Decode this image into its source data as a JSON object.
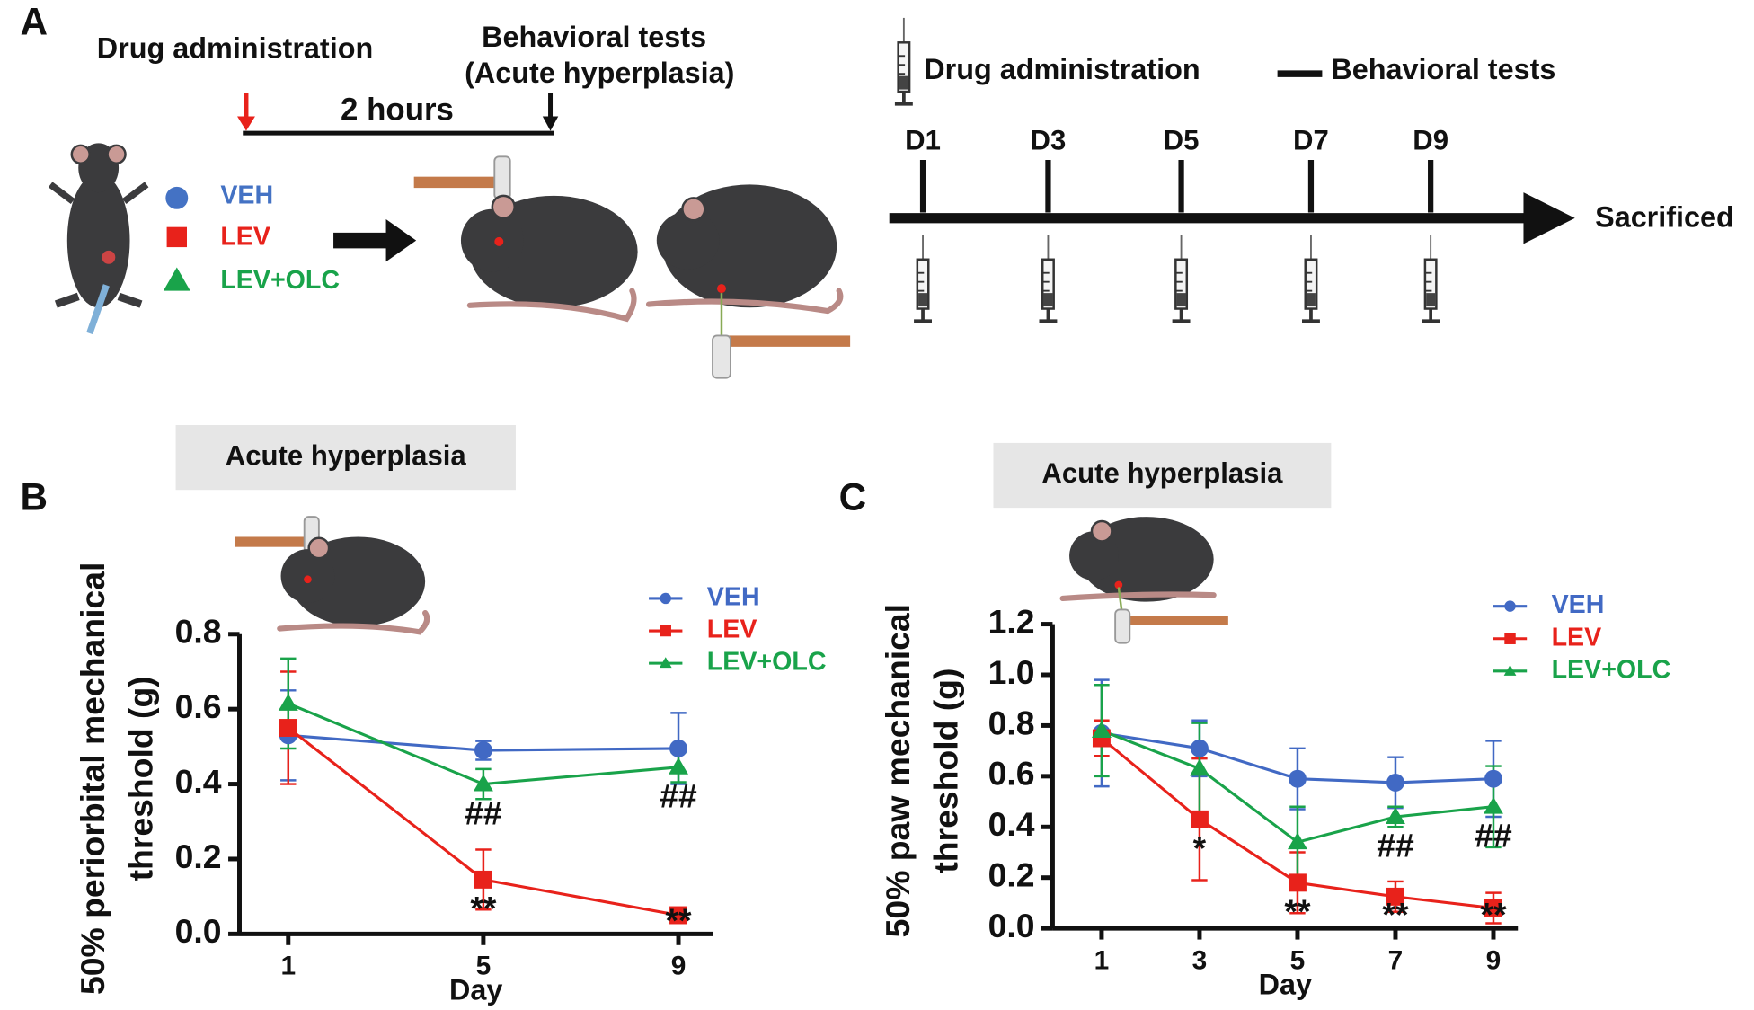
{
  "panel_labels": [
    "A",
    "B",
    "C"
  ],
  "panel_a": {
    "left": {
      "drug_label": "Drug administration",
      "test_label": [
        "Behavioral tests",
        "(Acute hyperplasia)"
      ],
      "interval": "2 hours",
      "groups": [
        "VEH",
        "LEV",
        "LEV+OLC"
      ]
    },
    "right": {
      "legend_drug": "Drug administration",
      "legend_test": "Behavioral tests",
      "days": [
        "D1",
        "D3",
        "D5",
        "D7",
        "D9"
      ],
      "end": "Sacrificed"
    }
  },
  "chart_data": [
    {
      "type": "line",
      "subtitle": "Acute hyperplasia",
      "y_label": [
        "50% periorbital mechanical",
        "threshold (g)"
      ],
      "x_label": "Day",
      "x": [
        1,
        5,
        9
      ],
      "xlim": [
        0,
        9.7
      ],
      "xticks": [
        1,
        5,
        9
      ],
      "ylim": [
        0,
        0.8
      ],
      "yticks": [
        {
          "value": 0,
          "label": "0.0"
        },
        0.2,
        0.4,
        0.6,
        0.8
      ],
      "legend": "upper right",
      "series": [
        {
          "name": "VEH",
          "color": "#4169c4",
          "marker": "circle",
          "values": [
            0.53,
            0.49,
            0.495
          ],
          "errors": [
            0.12,
            0.025,
            0.095
          ]
        },
        {
          "name": "LEV",
          "color": "#e8221b",
          "marker": "square",
          "values": [
            0.55,
            0.145,
            0.05
          ],
          "errors": [
            0.15,
            0.08,
            0.01
          ],
          "significance": [
            null,
            "**",
            "**"
          ]
        },
        {
          "name": "LEV+OLC",
          "color": "#19a34a",
          "marker": "triangle",
          "values": [
            0.615,
            0.4,
            0.445
          ],
          "errors": [
            0.12,
            0.04,
            0.04
          ],
          "significance": [
            null,
            "##",
            "##"
          ]
        }
      ]
    },
    {
      "type": "line",
      "subtitle": "Acute hyperplasia",
      "y_label": [
        "50% paw mechanical",
        "threshold (g)"
      ],
      "x_label": "Day",
      "x": [
        1,
        3,
        5,
        7,
        9
      ],
      "xlim": [
        0,
        9.5
      ],
      "xticks": [
        1,
        3,
        5,
        7,
        9
      ],
      "ylim": [
        0,
        1.2
      ],
      "yticks": [
        {
          "value": 0,
          "label": "0.0"
        },
        0.2,
        0.4,
        0.6,
        0.8,
        {
          "value": 1,
          "label": "1.0"
        },
        1.2
      ],
      "legend": "upper right",
      "series": [
        {
          "name": "VEH",
          "color": "#4169c4",
          "marker": "circle",
          "values": [
            0.77,
            0.71,
            0.59,
            0.575,
            0.59
          ],
          "errors": [
            0.21,
            0.11,
            0.12,
            0.1,
            0.15
          ]
        },
        {
          "name": "LEV",
          "color": "#e8221b",
          "marker": "square",
          "values": [
            0.75,
            0.43,
            0.18,
            0.125,
            0.08
          ],
          "errors": [
            0.07,
            0.24,
            0.12,
            0.06,
            0.06
          ],
          "significance": [
            null,
            "*",
            "**",
            "**",
            "**"
          ]
        },
        {
          "name": "LEV+OLC",
          "color": "#19a34a",
          "marker": "triangle",
          "values": [
            0.78,
            0.63,
            0.34,
            0.44,
            0.48
          ],
          "errors": [
            0.18,
            0.18,
            0.14,
            0.04,
            0.16
          ],
          "significance": [
            null,
            null,
            null,
            "##",
            "##"
          ]
        }
      ]
    }
  ]
}
